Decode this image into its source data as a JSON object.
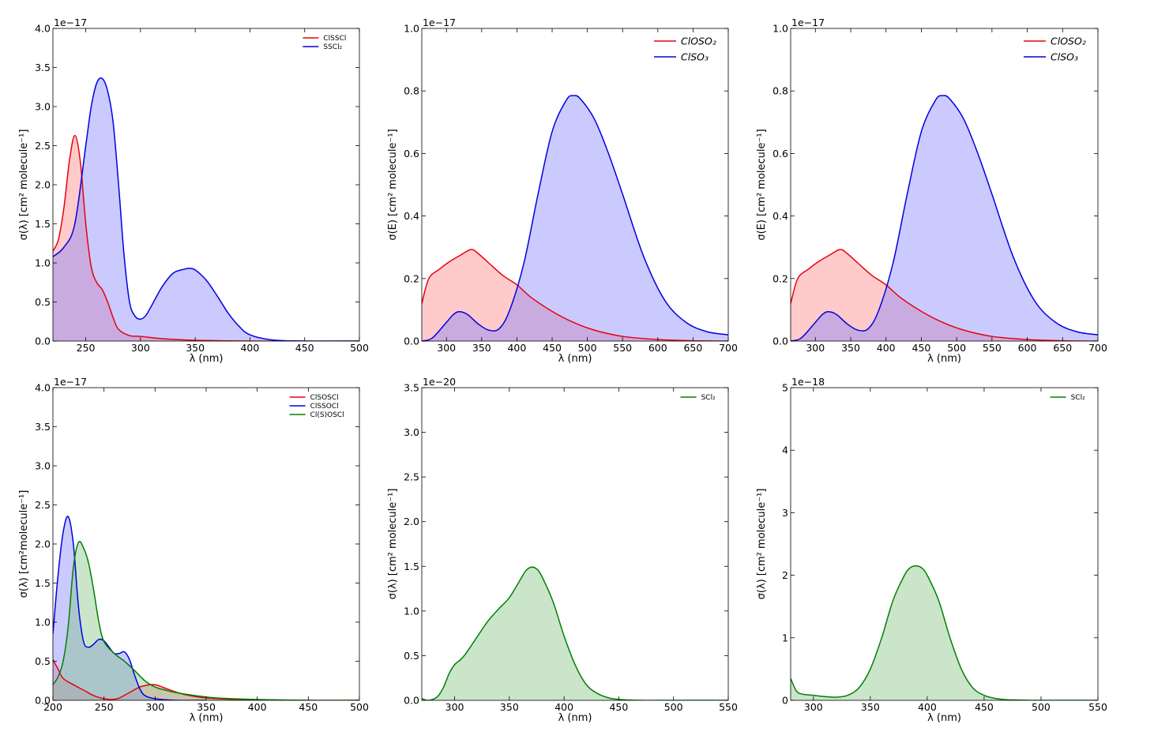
{
  "chart_data": [
    {
      "type": "area",
      "xlabel": "λ (nm)",
      "ylabel": "σ(λ) [cm² molecule⁻¹]",
      "offset": "1e−17",
      "xlim": [
        220,
        500
      ],
      "ylim": [
        0,
        4.0
      ],
      "xticks": [
        {
          "v": 250,
          "label": "250"
        },
        {
          "v": 300,
          "label": "300"
        },
        {
          "v": 350,
          "label": "350"
        },
        {
          "v": 400,
          "label": "400"
        },
        {
          "v": 450,
          "label": "450"
        },
        {
          "v": 500,
          "label": "500"
        }
      ],
      "yticks": [
        {
          "v": 0,
          "label": "0.0"
        },
        {
          "v": 0.5,
          "label": "0.5"
        },
        {
          "v": 1.0,
          "label": "1.0"
        },
        {
          "v": 1.5,
          "label": "1.5"
        },
        {
          "v": 2.0,
          "label": "2.0"
        },
        {
          "v": 2.5,
          "label": "2.5"
        },
        {
          "v": 3.0,
          "label": "3.0"
        },
        {
          "v": 3.5,
          "label": "3.5"
        },
        {
          "v": 4.0,
          "label": "4.0"
        }
      ],
      "legend": {
        "position": "upper-right",
        "size": "small"
      },
      "series": [
        {
          "name": "ClSSCl",
          "color": "#e8000b",
          "fill": "#ff8080",
          "x": [
            220,
            225,
            230,
            235,
            240,
            245,
            250,
            255,
            260,
            265,
            270,
            275,
            280,
            290,
            300,
            320,
            350,
            400,
            450,
            500
          ],
          "y": [
            1.15,
            1.3,
            1.7,
            2.3,
            2.63,
            2.3,
            1.5,
            0.95,
            0.75,
            0.66,
            0.5,
            0.3,
            0.15,
            0.07,
            0.06,
            0.03,
            0.01,
            0.0,
            0.0,
            0.0
          ]
        },
        {
          "name": "SSCl₂",
          "color": "#0000e0",
          "fill": "#8080ff",
          "x": [
            220,
            230,
            240,
            250,
            255,
            260,
            265,
            270,
            275,
            280,
            285,
            290,
            295,
            300,
            305,
            310,
            320,
            330,
            340,
            345,
            350,
            360,
            370,
            380,
            390,
            400,
            420,
            450,
            500
          ],
          "y": [
            1.08,
            1.2,
            1.5,
            2.5,
            3.0,
            3.3,
            3.36,
            3.2,
            2.8,
            2.0,
            1.1,
            0.5,
            0.32,
            0.28,
            0.33,
            0.45,
            0.7,
            0.87,
            0.92,
            0.93,
            0.91,
            0.78,
            0.58,
            0.36,
            0.19,
            0.08,
            0.015,
            0.0,
            0.0
          ]
        }
      ]
    },
    {
      "type": "area",
      "xlabel": "λ (nm)",
      "ylabel": "σ(E) [cm² molecule⁻¹]",
      "offset": "1e−17",
      "xlim": [
        265,
        700
      ],
      "ylim": [
        0,
        1.0
      ],
      "xticks": [
        {
          "v": 300,
          "label": "300"
        },
        {
          "v": 350,
          "label": "350"
        },
        {
          "v": 400,
          "label": "400"
        },
        {
          "v": 450,
          "label": "450"
        },
        {
          "v": 500,
          "label": "500"
        },
        {
          "v": 550,
          "label": "550"
        },
        {
          "v": 600,
          "label": "600"
        },
        {
          "v": 650,
          "label": "650"
        },
        {
          "v": 700,
          "label": "700"
        }
      ],
      "yticks": [
        {
          "v": 0,
          "label": "0.0"
        },
        {
          "v": 0.2,
          "label": "0.2"
        },
        {
          "v": 0.4,
          "label": "0.4"
        },
        {
          "v": 0.6,
          "label": "0.6"
        },
        {
          "v": 0.8,
          "label": "0.8"
        },
        {
          "v": 1.0,
          "label": "1.0"
        }
      ],
      "legend": {
        "position": "upper-right",
        "size": "large"
      },
      "series": [
        {
          "name": "ClOSO₂",
          "color": "#e8000b",
          "fill": "#ff8080",
          "x": [
            265,
            275,
            290,
            305,
            320,
            335,
            345,
            360,
            380,
            400,
            420,
            450,
            480,
            510,
            550,
            600,
            650,
            700
          ],
          "y": [
            0.12,
            0.2,
            0.23,
            0.255,
            0.275,
            0.293,
            0.28,
            0.25,
            0.21,
            0.18,
            0.14,
            0.095,
            0.06,
            0.035,
            0.015,
            0.005,
            0.001,
            0.0
          ]
        },
        {
          "name": "ClSO₃",
          "color": "#0000e0",
          "fill": "#8080ff",
          "x": [
            265,
            280,
            300,
            310,
            318,
            330,
            345,
            360,
            375,
            390,
            410,
            430,
            450,
            470,
            480,
            490,
            510,
            530,
            550,
            580,
            610,
            640,
            670,
            700
          ],
          "y": [
            0.0,
            0.01,
            0.06,
            0.085,
            0.094,
            0.085,
            0.055,
            0.035,
            0.04,
            0.1,
            0.25,
            0.47,
            0.67,
            0.77,
            0.785,
            0.775,
            0.71,
            0.6,
            0.47,
            0.27,
            0.13,
            0.06,
            0.03,
            0.02
          ]
        }
      ]
    },
    {
      "type": "area",
      "xlabel": "λ (nm)",
      "ylabel": "σ(E) [cm² molecule⁻¹]",
      "offset": "1e−17",
      "xlim": [
        265,
        700
      ],
      "ylim": [
        0,
        1.0
      ],
      "xticks": [
        {
          "v": 300,
          "label": "300"
        },
        {
          "v": 350,
          "label": "350"
        },
        {
          "v": 400,
          "label": "400"
        },
        {
          "v": 450,
          "label": "450"
        },
        {
          "v": 500,
          "label": "500"
        },
        {
          "v": 550,
          "label": "550"
        },
        {
          "v": 600,
          "label": "600"
        },
        {
          "v": 650,
          "label": "650"
        },
        {
          "v": 700,
          "label": "700"
        }
      ],
      "yticks": [
        {
          "v": 0,
          "label": "0.0"
        },
        {
          "v": 0.2,
          "label": "0.2"
        },
        {
          "v": 0.4,
          "label": "0.4"
        },
        {
          "v": 0.6,
          "label": "0.6"
        },
        {
          "v": 0.8,
          "label": "0.8"
        },
        {
          "v": 1.0,
          "label": "1.0"
        }
      ],
      "legend": {
        "position": "upper-right",
        "size": "large"
      },
      "series": [
        {
          "name": "ClOSO₂",
          "color": "#e8000b",
          "fill": "#ff8080",
          "x": [
            265,
            275,
            290,
            305,
            320,
            335,
            345,
            360,
            380,
            400,
            420,
            450,
            480,
            510,
            550,
            600,
            650,
            700
          ],
          "y": [
            0.12,
            0.2,
            0.23,
            0.255,
            0.275,
            0.293,
            0.28,
            0.25,
            0.21,
            0.18,
            0.14,
            0.095,
            0.06,
            0.035,
            0.015,
            0.005,
            0.001,
            0.0
          ]
        },
        {
          "name": "ClSO₃",
          "color": "#0000e0",
          "fill": "#8080ff",
          "x": [
            265,
            280,
            300,
            310,
            318,
            330,
            345,
            360,
            375,
            390,
            410,
            430,
            450,
            470,
            480,
            490,
            510,
            530,
            550,
            580,
            610,
            640,
            670,
            700
          ],
          "y": [
            0.0,
            0.01,
            0.06,
            0.085,
            0.094,
            0.085,
            0.055,
            0.035,
            0.04,
            0.1,
            0.25,
            0.47,
            0.67,
            0.77,
            0.785,
            0.775,
            0.71,
            0.6,
            0.47,
            0.27,
            0.13,
            0.06,
            0.03,
            0.02
          ]
        }
      ]
    },
    {
      "type": "area",
      "xlabel": "λ (nm)",
      "ylabel": "σ(λ) [cm²molecule⁻¹]",
      "offset": "1e−17",
      "xlim": [
        200,
        500
      ],
      "ylim": [
        0,
        4.0
      ],
      "xticks": [
        {
          "v": 200,
          "label": "200"
        },
        {
          "v": 250,
          "label": "250"
        },
        {
          "v": 300,
          "label": "300"
        },
        {
          "v": 350,
          "label": "350"
        },
        {
          "v": 400,
          "label": "400"
        },
        {
          "v": 450,
          "label": "450"
        },
        {
          "v": 500,
          "label": "500"
        }
      ],
      "yticks": [
        {
          "v": 0,
          "label": "0.0"
        },
        {
          "v": 0.5,
          "label": "0.5"
        },
        {
          "v": 1.0,
          "label": "1.0"
        },
        {
          "v": 1.5,
          "label": "1.5"
        },
        {
          "v": 2.0,
          "label": "2.0"
        },
        {
          "v": 2.5,
          "label": "2.5"
        },
        {
          "v": 3.0,
          "label": "3.0"
        },
        {
          "v": 3.5,
          "label": "3.5"
        },
        {
          "v": 4.0,
          "label": "4.0"
        }
      ],
      "legend": {
        "position": "upper-right",
        "size": "small"
      },
      "series": [
        {
          "name": "ClSOSCl",
          "color": "#e8000b",
          "fill": "#ff8080",
          "x": [
            200,
            205,
            210,
            220,
            230,
            240,
            250,
            258,
            265,
            275,
            285,
            295,
            300,
            305,
            315,
            330,
            350,
            380,
            420,
            500
          ],
          "y": [
            0.52,
            0.4,
            0.28,
            0.2,
            0.13,
            0.06,
            0.02,
            0.01,
            0.03,
            0.1,
            0.17,
            0.2,
            0.2,
            0.18,
            0.13,
            0.07,
            0.03,
            0.01,
            0.0,
            0.0
          ]
        },
        {
          "name": "ClSSOCl",
          "color": "#0000e0",
          "fill": "#8080ff",
          "x": [
            200,
            205,
            210,
            215,
            220,
            225,
            230,
            235,
            240,
            245,
            250,
            255,
            260,
            265,
            270,
            275,
            280,
            285,
            290,
            300,
            320,
            350
          ],
          "y": [
            0.85,
            1.6,
            2.15,
            2.35,
            2.0,
            1.2,
            0.75,
            0.68,
            0.72,
            0.78,
            0.76,
            0.68,
            0.6,
            0.6,
            0.62,
            0.52,
            0.32,
            0.15,
            0.06,
            0.02,
            0.0,
            0.0
          ]
        },
        {
          "name": "Cl(S)OSCl",
          "color": "#008000",
          "fill": "#80c080",
          "x": [
            200,
            205,
            210,
            215,
            220,
            225,
            230,
            235,
            240,
            245,
            250,
            260,
            270,
            280,
            290,
            300,
            310,
            320,
            340,
            360,
            400,
            450,
            500
          ],
          "y": [
            0.2,
            0.3,
            0.5,
            0.95,
            1.7,
            2.02,
            1.95,
            1.75,
            1.4,
            1.0,
            0.75,
            0.6,
            0.5,
            0.38,
            0.25,
            0.17,
            0.13,
            0.1,
            0.06,
            0.03,
            0.01,
            0.0,
            0.0
          ]
        }
      ]
    },
    {
      "type": "area",
      "xlabel": "λ (nm)",
      "ylabel": "σ(λ) [cm² molecule⁻¹]",
      "offset": "1e−20",
      "xlim": [
        270,
        550
      ],
      "ylim": [
        0,
        3.5
      ],
      "xticks": [
        {
          "v": 300,
          "label": "300"
        },
        {
          "v": 350,
          "label": "350"
        },
        {
          "v": 400,
          "label": "400"
        },
        {
          "v": 450,
          "label": "450"
        },
        {
          "v": 500,
          "label": "500"
        },
        {
          "v": 550,
          "label": "550"
        }
      ],
      "yticks": [
        {
          "v": 0,
          "label": "0.0"
        },
        {
          "v": 0.5,
          "label": "0.5"
        },
        {
          "v": 1.0,
          "label": "1.0"
        },
        {
          "v": 1.5,
          "label": "1.5"
        },
        {
          "v": 2.0,
          "label": "2.0"
        },
        {
          "v": 2.5,
          "label": "2.5"
        },
        {
          "v": 3.0,
          "label": "3.0"
        },
        {
          "v": 3.5,
          "label": "3.5"
        }
      ],
      "legend": {
        "position": "upper-right",
        "size": "small"
      },
      "series": [
        {
          "name": "SCl₂",
          "color": "#008000",
          "fill": "#80c080",
          "x": [
            270,
            275,
            280,
            285,
            290,
            295,
            300,
            305,
            310,
            320,
            330,
            340,
            350,
            360,
            365,
            370,
            375,
            380,
            390,
            400,
            410,
            420,
            430,
            440,
            450,
            470,
            500,
            550
          ],
          "y": [
            0.02,
            0.0,
            0.01,
            0.05,
            0.15,
            0.3,
            0.4,
            0.45,
            0.52,
            0.7,
            0.88,
            1.02,
            1.15,
            1.35,
            1.45,
            1.49,
            1.47,
            1.38,
            1.1,
            0.72,
            0.4,
            0.18,
            0.08,
            0.03,
            0.01,
            0.0,
            0.0,
            0.0
          ]
        }
      ]
    },
    {
      "type": "area",
      "xlabel": "λ (nm)",
      "ylabel": "σ(λ) [cm² molecule⁻¹]",
      "offset": "1e−18",
      "xlim": [
        280,
        550
      ],
      "ylim": [
        0,
        5
      ],
      "xticks": [
        {
          "v": 300,
          "label": "300"
        },
        {
          "v": 350,
          "label": "350"
        },
        {
          "v": 400,
          "label": "400"
        },
        {
          "v": 450,
          "label": "450"
        },
        {
          "v": 500,
          "label": "500"
        },
        {
          "v": 550,
          "label": "550"
        }
      ],
      "yticks": [
        {
          "v": 0,
          "label": "0"
        },
        {
          "v": 1,
          "label": "1"
        },
        {
          "v": 2,
          "label": "2"
        },
        {
          "v": 3,
          "label": "3"
        },
        {
          "v": 4,
          "label": "4"
        },
        {
          "v": 5,
          "label": "5"
        }
      ],
      "legend": {
        "position": "upper-right",
        "size": "small"
      },
      "series": [
        {
          "name": "SCl₂",
          "color": "#008000",
          "fill": "#80c080",
          "x": [
            280,
            285,
            290,
            300,
            310,
            320,
            330,
            340,
            350,
            360,
            370,
            380,
            385,
            390,
            395,
            400,
            410,
            420,
            430,
            440,
            450,
            460,
            470,
            480,
            500,
            550
          ],
          "y": [
            0.35,
            0.15,
            0.1,
            0.08,
            0.06,
            0.05,
            0.08,
            0.2,
            0.5,
            1.0,
            1.6,
            2.0,
            2.12,
            2.15,
            2.12,
            2.0,
            1.6,
            1.0,
            0.5,
            0.2,
            0.08,
            0.03,
            0.01,
            0.005,
            0.0,
            0.0
          ]
        }
      ]
    }
  ]
}
